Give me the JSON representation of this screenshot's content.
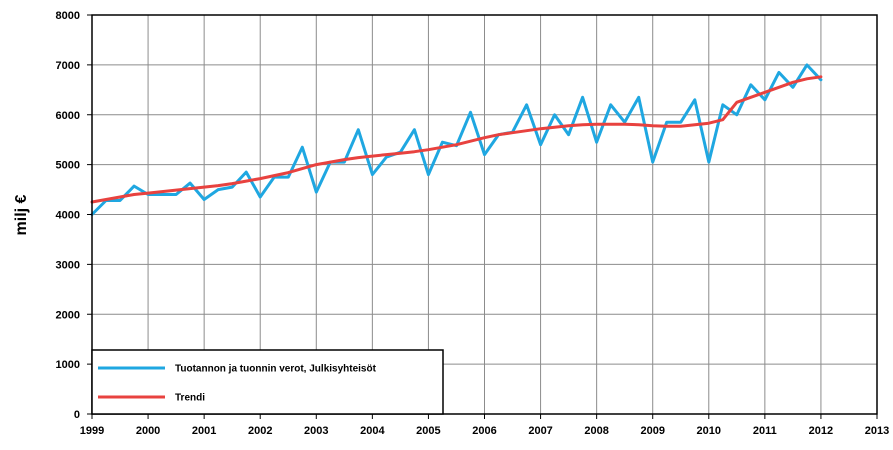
{
  "chart_data": {
    "type": "line",
    "title": "",
    "xlabel": "",
    "ylabel": "milj €",
    "xlim": [
      1999,
      2013
    ],
    "ylim": [
      0,
      8000
    ],
    "grid": true,
    "legend_position": "bottom-left",
    "x_ticks": [
      "1999",
      "2000",
      "2001",
      "2002",
      "2003",
      "2004",
      "2005",
      "2006",
      "2007",
      "2008",
      "2009",
      "2010",
      "2011",
      "2012",
      "2013"
    ],
    "y_ticks": [
      "0",
      "1000",
      "2000",
      "3000",
      "4000",
      "5000",
      "6000",
      "7000",
      "8000"
    ],
    "x": [
      1999.0,
      1999.25,
      1999.5,
      1999.75,
      2000.0,
      2000.25,
      2000.5,
      2000.75,
      2001.0,
      2001.25,
      2001.5,
      2001.75,
      2002.0,
      2002.25,
      2002.5,
      2002.75,
      2003.0,
      2003.25,
      2003.5,
      2003.75,
      2004.0,
      2004.25,
      2004.5,
      2004.75,
      2005.0,
      2005.25,
      2005.5,
      2005.75,
      2006.0,
      2006.25,
      2006.5,
      2006.75,
      2007.0,
      2007.25,
      2007.5,
      2007.75,
      2008.0,
      2008.25,
      2008.5,
      2008.75,
      2009.0,
      2009.25,
      2009.5,
      2009.75,
      2010.0,
      2010.25,
      2010.5,
      2010.75,
      2011.0,
      2011.25,
      2011.5,
      2011.75,
      2012.0
    ],
    "series": [
      {
        "name": "Tuotannon ja tuonnin verot, Julkisyhteisöt",
        "color": "#1fa7e1",
        "values": [
          4000,
          4280,
          4280,
          4570,
          4400,
          4400,
          4400,
          4630,
          4300,
          4500,
          4550,
          4850,
          4350,
          4750,
          4750,
          5350,
          4450,
          5050,
          5050,
          5700,
          4800,
          5150,
          5250,
          5700,
          4800,
          5450,
          5380,
          6050,
          5200,
          5600,
          5650,
          6200,
          5400,
          6000,
          5600,
          6350,
          5450,
          6200,
          5850,
          6350,
          5050,
          5850,
          5850,
          6300,
          5050,
          6200,
          6000,
          6600,
          6300,
          6850,
          6550,
          7000,
          6700
        ]
      },
      {
        "name": "Trendi",
        "color": "#e8423f",
        "values": [
          4250,
          4300,
          4350,
          4400,
          4430,
          4460,
          4490,
          4520,
          4550,
          4580,
          4620,
          4670,
          4720,
          4780,
          4840,
          4920,
          5000,
          5050,
          5100,
          5140,
          5170,
          5200,
          5230,
          5260,
          5300,
          5350,
          5400,
          5470,
          5540,
          5600,
          5640,
          5680,
          5720,
          5750,
          5780,
          5800,
          5810,
          5810,
          5810,
          5800,
          5780,
          5770,
          5770,
          5800,
          5830,
          5900,
          6250,
          6350,
          6450,
          6550,
          6650,
          6720,
          6760
        ]
      }
    ]
  }
}
